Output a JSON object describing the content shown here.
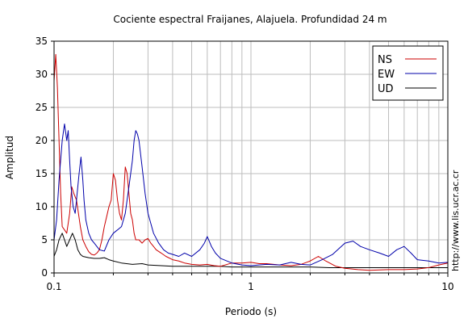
{
  "chart_data": {
    "type": "line",
    "title": "Cociente espectral Fraijanes, Alajuela. Profundidad 24 m",
    "xlabel": "Periodo (s)",
    "ylabel": "Amplitud",
    "xscale": "log",
    "xlim": [
      0.1,
      10
    ],
    "ylim": [
      0,
      35
    ],
    "xticks": [
      {
        "value": 0.1,
        "label": "0.1"
      },
      {
        "value": 1,
        "label": "1"
      },
      {
        "value": 10,
        "label": "10"
      }
    ],
    "yticks": [
      0,
      5,
      10,
      15,
      20,
      25,
      30,
      35
    ],
    "grid": true,
    "legend_position": "top-right",
    "side_text": "http://www.lis.ucr.ac.cr",
    "series": [
      {
        "name": "NS",
        "color": "#cc0000",
        "x": [
          0.1,
          0.102,
          0.104,
          0.106,
          0.108,
          0.11,
          0.113,
          0.116,
          0.12,
          0.123,
          0.126,
          0.13,
          0.133,
          0.136,
          0.14,
          0.145,
          0.15,
          0.155,
          0.16,
          0.165,
          0.17,
          0.175,
          0.18,
          0.185,
          0.19,
          0.195,
          0.2,
          0.205,
          0.21,
          0.215,
          0.22,
          0.225,
          0.23,
          0.235,
          0.24,
          0.245,
          0.25,
          0.255,
          0.26,
          0.27,
          0.28,
          0.29,
          0.3,
          0.31,
          0.32,
          0.33,
          0.35,
          0.37,
          0.4,
          0.43,
          0.46,
          0.5,
          0.55,
          0.6,
          0.65,
          0.7,
          0.8,
          0.9,
          1.0,
          1.1,
          1.2,
          1.4,
          1.6,
          1.8,
          2.0,
          2.2,
          2.4,
          2.7,
          3.0,
          3.5,
          4.0,
          5.0,
          6.0,
          7.0,
          8.0,
          9.0,
          10.0
        ],
        "y": [
          29,
          33,
          28,
          20,
          12,
          7,
          6.5,
          6,
          9,
          13,
          12,
          11,
          9,
          7,
          5,
          4,
          3.2,
          2.8,
          2.7,
          3,
          3.5,
          5,
          7,
          8.5,
          10,
          11,
          15,
          14,
          11,
          9,
          8,
          11,
          16,
          15,
          12,
          9,
          8,
          6,
          5,
          5,
          4.5,
          5,
          5.2,
          4.5,
          4,
          3.5,
          3,
          2.5,
          2,
          1.8,
          1.5,
          1.3,
          1.2,
          1.3,
          1.1,
          1.0,
          1.5,
          1.5,
          1.6,
          1.4,
          1.4,
          1.2,
          1.1,
          1.3,
          1.8,
          2.5,
          1.8,
          1.0,
          0.7,
          0.5,
          0.4,
          0.5,
          0.5,
          0.6,
          0.8,
          1.2,
          1.5
        ]
      },
      {
        "name": "EW",
        "color": "#0000aa",
        "x": [
          0.1,
          0.103,
          0.106,
          0.11,
          0.113,
          0.116,
          0.118,
          0.12,
          0.122,
          0.125,
          0.128,
          0.131,
          0.134,
          0.137,
          0.14,
          0.142,
          0.145,
          0.15,
          0.155,
          0.16,
          0.17,
          0.18,
          0.19,
          0.2,
          0.21,
          0.22,
          0.23,
          0.24,
          0.25,
          0.255,
          0.26,
          0.265,
          0.27,
          0.28,
          0.29,
          0.3,
          0.32,
          0.34,
          0.36,
          0.38,
          0.4,
          0.43,
          0.46,
          0.5,
          0.55,
          0.58,
          0.6,
          0.63,
          0.66,
          0.7,
          0.8,
          0.9,
          1.0,
          1.2,
          1.4,
          1.6,
          1.8,
          2.0,
          2.3,
          2.6,
          3.0,
          3.3,
          3.6,
          4.0,
          4.5,
          5.0,
          5.5,
          6.0,
          6.5,
          7.0,
          8.0,
          9.0,
          10.0
        ],
        "y": [
          5,
          8,
          14,
          20,
          22.5,
          20,
          21.5,
          17,
          13,
          10,
          9,
          12,
          15,
          17.5,
          14,
          11,
          8,
          6,
          5,
          4.5,
          3.5,
          3.3,
          5,
          6,
          6.5,
          7,
          9,
          13,
          17,
          20,
          21.5,
          21,
          20,
          16,
          12,
          9,
          6,
          4.5,
          3.5,
          3,
          2.8,
          2.5,
          3,
          2.5,
          3.5,
          4.5,
          5.5,
          4,
          3,
          2.2,
          1.5,
          1.2,
          1.1,
          1.3,
          1.2,
          1.6,
          1.3,
          1.2,
          2,
          2.8,
          4.5,
          4.8,
          4,
          3.5,
          3,
          2.5,
          3.5,
          4,
          3,
          2,
          1.8,
          1.5,
          1.6
        ]
      },
      {
        "name": "UD",
        "color": "#000000",
        "x": [
          0.1,
          0.103,
          0.106,
          0.11,
          0.113,
          0.116,
          0.12,
          0.124,
          0.128,
          0.132,
          0.136,
          0.14,
          0.15,
          0.16,
          0.17,
          0.18,
          0.19,
          0.2,
          0.22,
          0.25,
          0.28,
          0.3,
          0.35,
          0.4,
          0.5,
          0.6,
          0.7,
          0.8,
          1.0,
          1.2,
          1.5,
          2.0,
          2.5,
          3.0,
          4.0,
          5.0,
          6.0,
          7.0,
          8.0,
          9.0,
          10.0
        ],
        "y": [
          2.5,
          3.5,
          5,
          6,
          5,
          4,
          5,
          6,
          5,
          3.5,
          2.8,
          2.5,
          2.3,
          2.2,
          2.2,
          2.3,
          2,
          1.8,
          1.5,
          1.3,
          1.4,
          1.2,
          1.1,
          1.0,
          1.0,
          1.0,
          1.0,
          0.9,
          0.9,
          0.9,
          0.9,
          0.9,
          0.8,
          0.8,
          0.8,
          0.8,
          0.8,
          0.8,
          0.8,
          0.8,
          0.8
        ]
      }
    ]
  }
}
